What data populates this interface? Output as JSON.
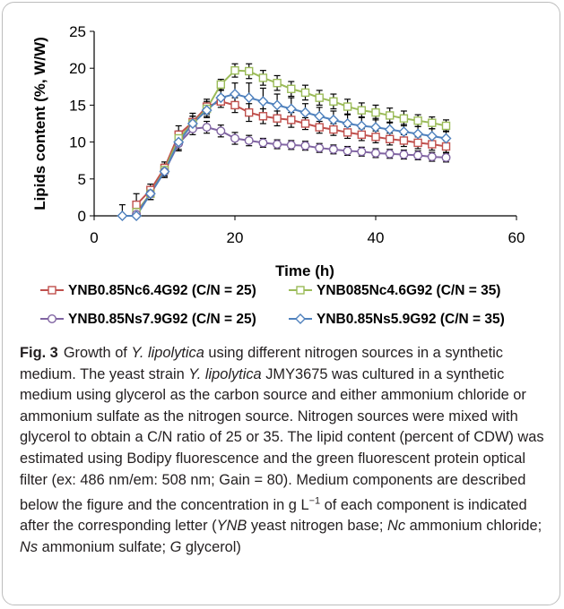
{
  "colors": {
    "axis": "#000000",
    "series_red": "#c0504d",
    "series_green": "#9bbb59",
    "series_purple": "#8064a2",
    "series_blue": "#4f81bd",
    "error_bar": "#000000"
  },
  "chart_data": {
    "type": "line",
    "title": "",
    "xlabel": "Time (h)",
    "ylabel": "Lipids content (%, W/W)",
    "xlim": [
      0,
      60
    ],
    "ylim": [
      0,
      25
    ],
    "xticks": [
      "0",
      "20",
      "40",
      "60"
    ],
    "yticks": [
      "0",
      "5",
      "10",
      "15",
      "20",
      "25"
    ],
    "grid": false,
    "legend_position": "bottom",
    "x": [
      4,
      6,
      8,
      10,
      12,
      14,
      16,
      18,
      20,
      22,
      24,
      26,
      28,
      30,
      32,
      34,
      36,
      38,
      40,
      42,
      44,
      46,
      48,
      50
    ],
    "series": [
      {
        "name": "YNB0.85Nc6.4G92 (C/N = 25)",
        "color": "#c0504d",
        "marker": "square",
        "values": [
          null,
          1.5,
          3.5,
          6.5,
          11.0,
          12.7,
          14.8,
          15.5,
          15.0,
          14.0,
          13.5,
          13.2,
          13.0,
          12.5,
          12.0,
          11.7,
          11.3,
          11.0,
          10.7,
          10.4,
          10.2,
          9.9,
          9.7,
          9.4
        ],
        "errors": [
          0,
          1.5,
          0.8,
          0.8,
          1.2,
          1.2,
          1.0,
          0.8,
          1.0,
          1.2,
          1.0,
          1.0,
          1.0,
          0.8,
          0.8,
          0.8,
          0.8,
          0.8,
          0.8,
          0.8,
          0.8,
          0.8,
          0.8,
          0.8
        ]
      },
      {
        "name": "YNB085Nc4.6G92  (C/N = 35)",
        "color": "#9bbb59",
        "marker": "square",
        "values": [
          null,
          0.5,
          3.0,
          6.2,
          10.5,
          12.5,
          14.5,
          17.8,
          19.7,
          19.6,
          18.7,
          18.0,
          17.2,
          16.7,
          16.0,
          15.5,
          14.8,
          14.3,
          14.0,
          13.6,
          13.2,
          12.9,
          12.6,
          12.2
        ],
        "errors": [
          0,
          0.8,
          0.8,
          0.8,
          1.0,
          1.0,
          1.0,
          0.7,
          0.9,
          1.0,
          1.0,
          1.0,
          1.0,
          1.0,
          1.0,
          1.0,
          1.0,
          1.0,
          1.0,
          1.0,
          1.0,
          0.8,
          0.8,
          0.8
        ]
      },
      {
        "name": "YNB0.85Ns7.9G92 (C/N = 25)",
        "color": "#8064a2",
        "marker": "circle",
        "values": [
          null,
          0.2,
          3.0,
          6.0,
          9.8,
          11.8,
          12.0,
          11.5,
          10.5,
          10.2,
          9.9,
          9.7,
          9.6,
          9.5,
          9.2,
          9.0,
          8.8,
          8.7,
          8.5,
          8.4,
          8.3,
          8.2,
          8.0,
          7.9
        ],
        "errors": [
          0,
          0.8,
          0.8,
          0.8,
          1.0,
          0.8,
          0.8,
          0.8,
          0.8,
          0.7,
          0.6,
          0.6,
          0.6,
          0.6,
          0.6,
          0.6,
          0.6,
          0.6,
          0.6,
          0.6,
          0.6,
          0.6,
          0.6,
          0.6
        ]
      },
      {
        "name": "YNB0.85Ns5.9G92 (C/N = 35)",
        "color": "#4f81bd",
        "marker": "diamond",
        "values": [
          0.0,
          0.0,
          3.0,
          6.0,
          10.0,
          12.5,
          14.3,
          16.0,
          16.5,
          16.0,
          15.5,
          15.0,
          14.5,
          14.0,
          13.5,
          13.0,
          12.5,
          12.2,
          12.0,
          11.7,
          11.4,
          11.1,
          10.8,
          10.5
        ],
        "errors": [
          1.5,
          0.8,
          0.8,
          0.8,
          1.0,
          1.0,
          1.0,
          1.0,
          1.5,
          2.0,
          1.8,
          1.5,
          1.5,
          1.2,
          1.2,
          1.2,
          1.2,
          1.2,
          1.2,
          1.0,
          1.0,
          1.0,
          1.0,
          1.0
        ]
      }
    ]
  },
  "caption": {
    "label": "Fig. 3",
    "text": "Growth of Y. lipolytica using different nitrogen sources in a synthetic medium. The yeast strain Y. lipolytica JMY3675 was cultured in a synthetic medium using glycerol as the carbon source and either ammonium chloride or ammonium sulfate as the nitrogen source. Nitrogen sources were mixed with glycerol to obtain a C/N ratio of 25 or 35. The lipid content (percent of CDW) was estimated using Bodipy fluorescence and the green fluorescent protein optical filter (ex: 486 nm/em: 508 nm; Gain = 80). Medium components are described below the figure and the concentration in g L−1 of each component is indicated after the corresponding letter (YNB yeast nitrogen base; Nc ammonium chloride; Ns ammonium sulfate; G glycerol)"
  }
}
